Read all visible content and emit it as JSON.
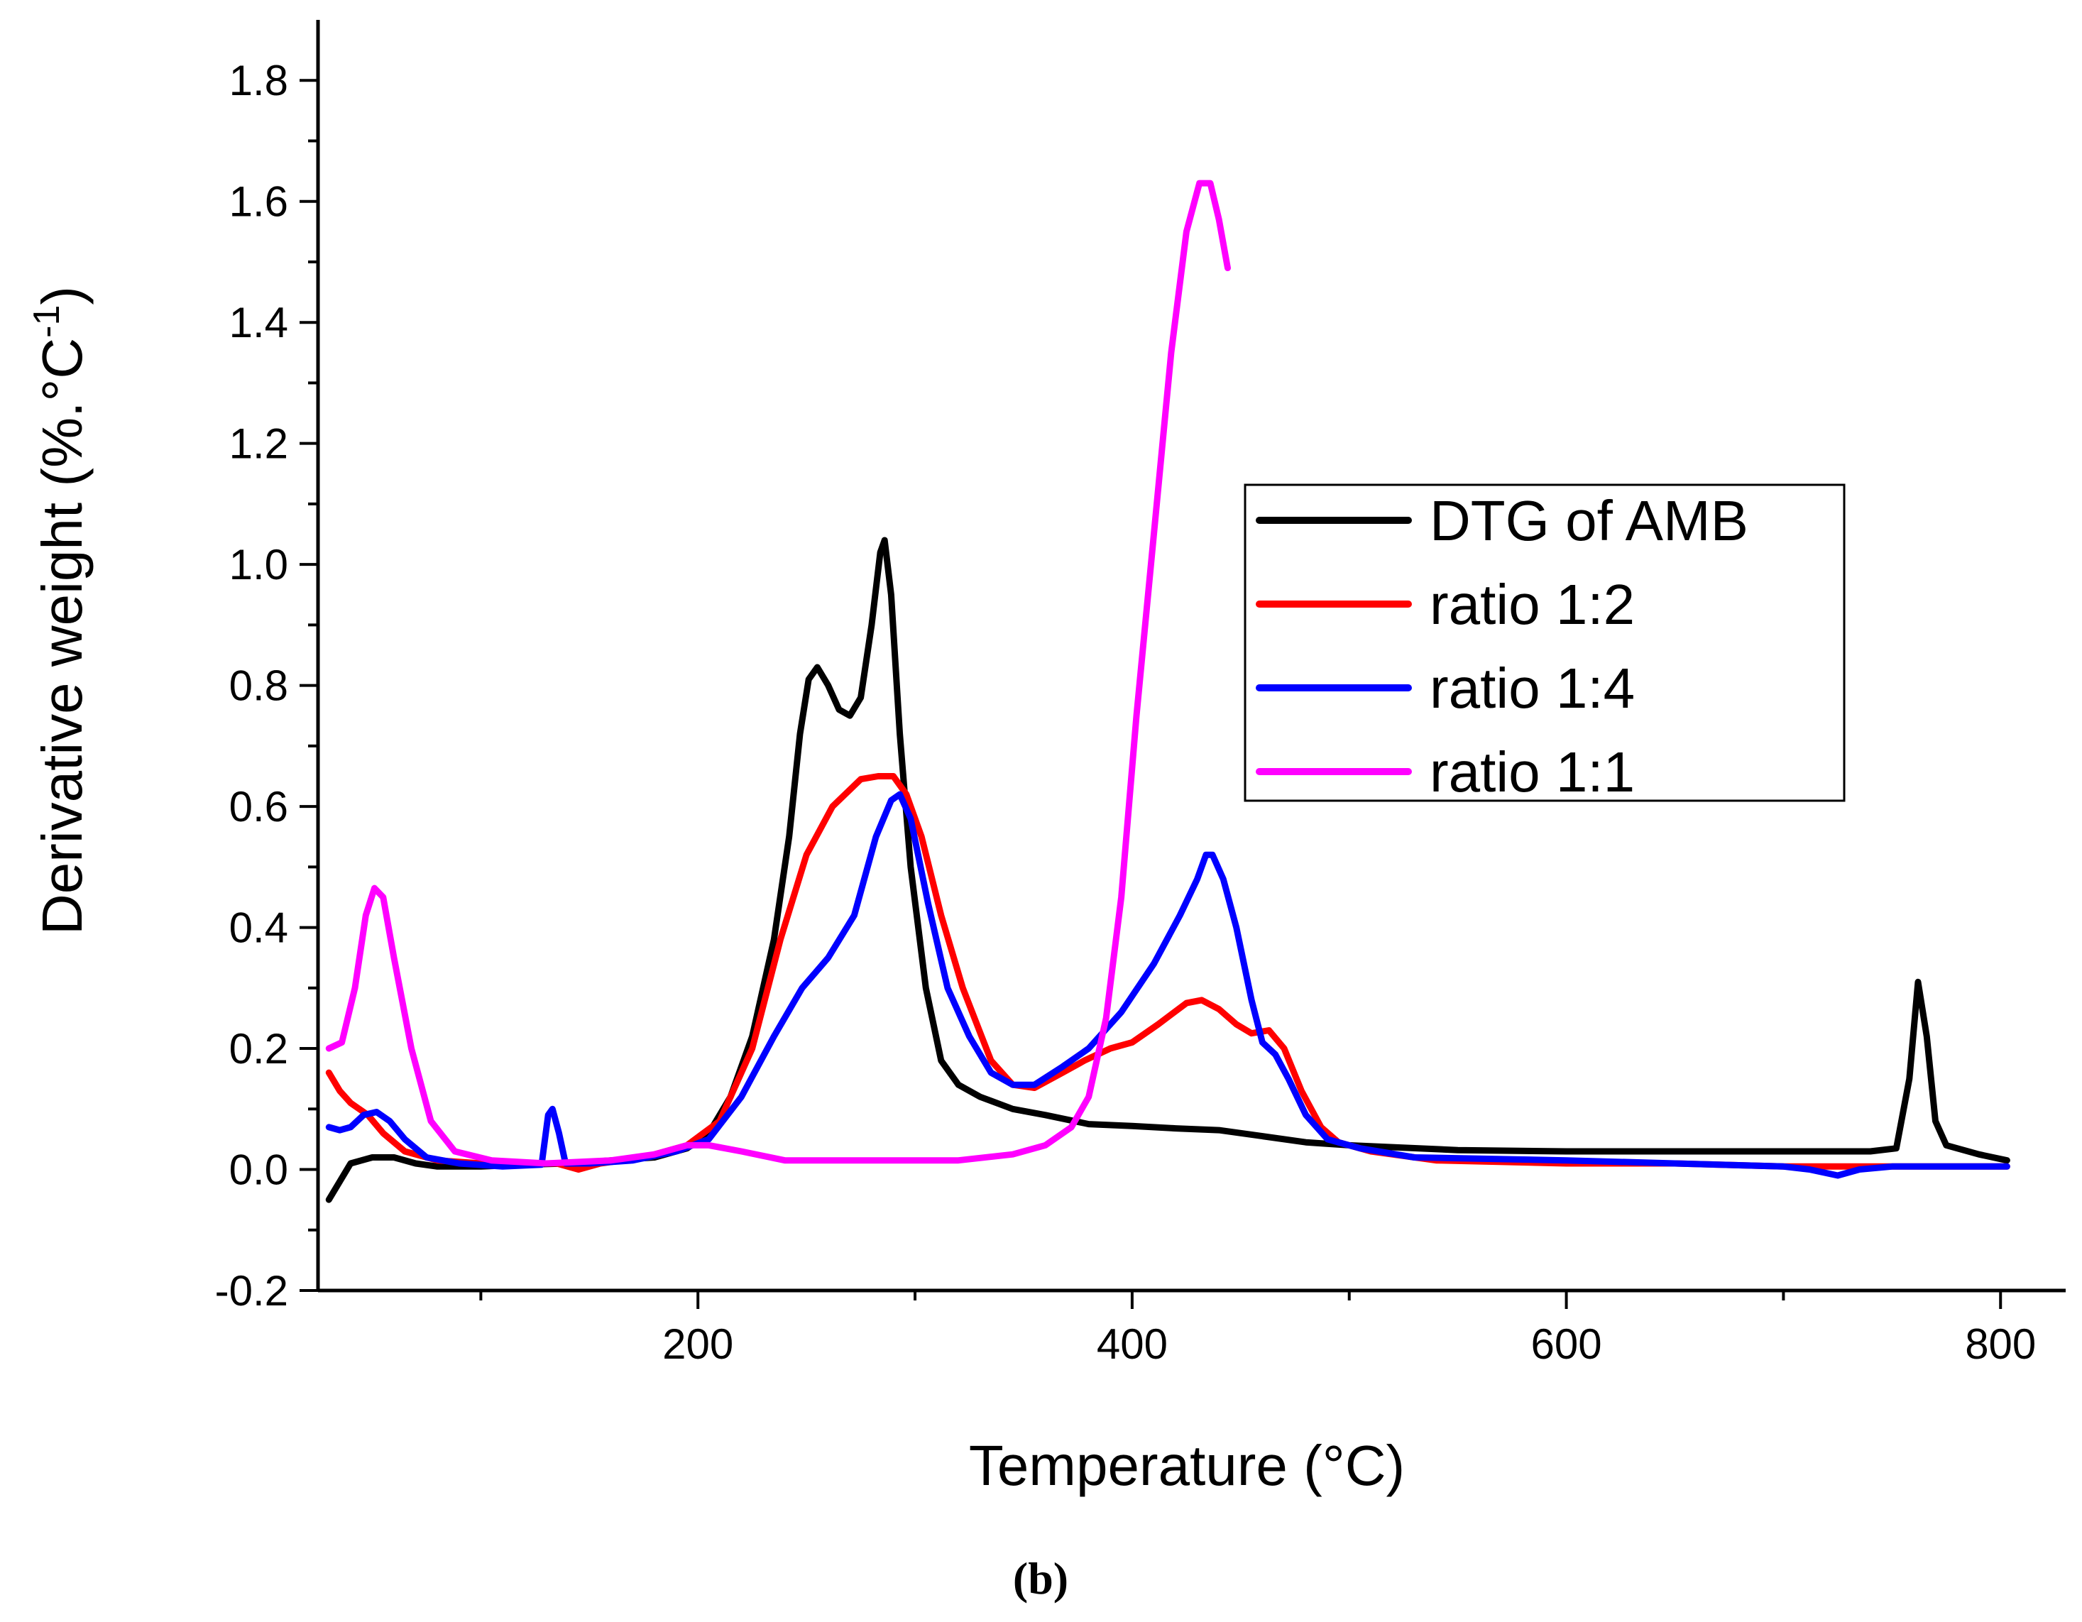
{
  "chart_data": {
    "type": "line",
    "title": "",
    "caption": "(b)",
    "xlabel": "Temperature (°C)",
    "ylabel_main": "Derivative weight (%.°C",
    "ylabel_sup": "-1",
    "ylabel_close": ")",
    "xlim": [
      25,
      830
    ],
    "ylim": [
      -0.2,
      1.9
    ],
    "x_ticks": [
      200,
      400,
      600,
      800
    ],
    "x_tick_labels": [
      "200",
      "400",
      "600",
      "800"
    ],
    "x_minor_ticks": [
      100,
      300,
      500,
      700
    ],
    "y_ticks": [
      -0.2,
      0.0,
      0.2,
      0.4,
      0.6,
      0.8,
      1.0,
      1.2,
      1.4,
      1.6,
      1.8
    ],
    "y_tick_labels": [
      "-0.2",
      "0.0",
      "0.2",
      "0.4",
      "0.6",
      "0.8",
      "1.0",
      "1.2",
      "1.4",
      "1.6",
      "1.8"
    ],
    "y_minor_ticks": [
      -0.1,
      0.1,
      0.3,
      0.5,
      0.7,
      0.9,
      1.1,
      1.3,
      1.5,
      1.7
    ],
    "grid": false,
    "legend_position": "center-right",
    "series": [
      {
        "name": "DTG of AMB",
        "color": "#000000",
        "points": [
          [
            30,
            -0.05
          ],
          [
            35,
            -0.02
          ],
          [
            40,
            0.01
          ],
          [
            50,
            0.02
          ],
          [
            60,
            0.02
          ],
          [
            70,
            0.01
          ],
          [
            80,
            0.005
          ],
          [
            100,
            0.005
          ],
          [
            120,
            0.008
          ],
          [
            140,
            0.01
          ],
          [
            160,
            0.015
          ],
          [
            180,
            0.02
          ],
          [
            195,
            0.035
          ],
          [
            205,
            0.06
          ],
          [
            215,
            0.12
          ],
          [
            225,
            0.22
          ],
          [
            235,
            0.38
          ],
          [
            242,
            0.55
          ],
          [
            247,
            0.72
          ],
          [
            251,
            0.81
          ],
          [
            255,
            0.83
          ],
          [
            260,
            0.8
          ],
          [
            265,
            0.76
          ],
          [
            270,
            0.75
          ],
          [
            275,
            0.78
          ],
          [
            280,
            0.9
          ],
          [
            284,
            1.02
          ],
          [
            286,
            1.04
          ],
          [
            289,
            0.95
          ],
          [
            293,
            0.72
          ],
          [
            298,
            0.5
          ],
          [
            305,
            0.3
          ],
          [
            312,
            0.18
          ],
          [
            320,
            0.14
          ],
          [
            330,
            0.12
          ],
          [
            345,
            0.1
          ],
          [
            360,
            0.09
          ],
          [
            380,
            0.075
          ],
          [
            400,
            0.072
          ],
          [
            420,
            0.068
          ],
          [
            440,
            0.065
          ],
          [
            460,
            0.055
          ],
          [
            480,
            0.045
          ],
          [
            500,
            0.04
          ],
          [
            550,
            0.032
          ],
          [
            600,
            0.03
          ],
          [
            650,
            0.03
          ],
          [
            700,
            0.03
          ],
          [
            740,
            0.03
          ],
          [
            752,
            0.035
          ],
          [
            758,
            0.15
          ],
          [
            762,
            0.31
          ],
          [
            766,
            0.22
          ],
          [
            770,
            0.08
          ],
          [
            775,
            0.04
          ],
          [
            790,
            0.025
          ],
          [
            803,
            0.015
          ]
        ]
      },
      {
        "name": "ratio 1:2",
        "color": "#ff0000",
        "points": [
          [
            30,
            0.16
          ],
          [
            35,
            0.13
          ],
          [
            40,
            0.11
          ],
          [
            48,
            0.09
          ],
          [
            55,
            0.06
          ],
          [
            65,
            0.03
          ],
          [
            80,
            0.015
          ],
          [
            100,
            0.01
          ],
          [
            120,
            0.01
          ],
          [
            135,
            0.01
          ],
          [
            145,
            0.0
          ],
          [
            155,
            0.01
          ],
          [
            175,
            0.02
          ],
          [
            195,
            0.04
          ],
          [
            210,
            0.08
          ],
          [
            225,
            0.2
          ],
          [
            238,
            0.38
          ],
          [
            250,
            0.52
          ],
          [
            262,
            0.6
          ],
          [
            275,
            0.645
          ],
          [
            283,
            0.65
          ],
          [
            290,
            0.65
          ],
          [
            296,
            0.62
          ],
          [
            303,
            0.55
          ],
          [
            312,
            0.42
          ],
          [
            322,
            0.3
          ],
          [
            335,
            0.18
          ],
          [
            345,
            0.14
          ],
          [
            355,
            0.135
          ],
          [
            368,
            0.16
          ],
          [
            378,
            0.18
          ],
          [
            390,
            0.2
          ],
          [
            400,
            0.21
          ],
          [
            412,
            0.24
          ],
          [
            425,
            0.275
          ],
          [
            432,
            0.28
          ],
          [
            440,
            0.265
          ],
          [
            448,
            0.24
          ],
          [
            455,
            0.225
          ],
          [
            463,
            0.23
          ],
          [
            470,
            0.2
          ],
          [
            478,
            0.13
          ],
          [
            487,
            0.07
          ],
          [
            495,
            0.045
          ],
          [
            510,
            0.03
          ],
          [
            540,
            0.015
          ],
          [
            600,
            0.01
          ],
          [
            650,
            0.01
          ],
          [
            700,
            0.005
          ],
          [
            750,
            0.005
          ],
          [
            803,
            0.005
          ]
        ]
      },
      {
        "name": "ratio 1:4",
        "color": "#0000ff",
        "points": [
          [
            30,
            0.07
          ],
          [
            35,
            0.065
          ],
          [
            40,
            0.07
          ],
          [
            46,
            0.09
          ],
          [
            52,
            0.095
          ],
          [
            58,
            0.08
          ],
          [
            65,
            0.05
          ],
          [
            75,
            0.02
          ],
          [
            90,
            0.01
          ],
          [
            110,
            0.005
          ],
          [
            128,
            0.008
          ],
          [
            131,
            0.09
          ],
          [
            133,
            0.1
          ],
          [
            136,
            0.06
          ],
          [
            139,
            0.01
          ],
          [
            150,
            0.01
          ],
          [
            170,
            0.015
          ],
          [
            190,
            0.03
          ],
          [
            205,
            0.05
          ],
          [
            220,
            0.12
          ],
          [
            235,
            0.22
          ],
          [
            248,
            0.3
          ],
          [
            260,
            0.35
          ],
          [
            272,
            0.42
          ],
          [
            282,
            0.55
          ],
          [
            289,
            0.61
          ],
          [
            293,
            0.62
          ],
          [
            298,
            0.58
          ],
          [
            306,
            0.44
          ],
          [
            315,
            0.3
          ],
          [
            325,
            0.22
          ],
          [
            335,
            0.16
          ],
          [
            345,
            0.14
          ],
          [
            355,
            0.14
          ],
          [
            368,
            0.17
          ],
          [
            380,
            0.2
          ],
          [
            395,
            0.26
          ],
          [
            410,
            0.34
          ],
          [
            422,
            0.42
          ],
          [
            430,
            0.48
          ],
          [
            434,
            0.52
          ],
          [
            437,
            0.52
          ],
          [
            442,
            0.48
          ],
          [
            448,
            0.4
          ],
          [
            455,
            0.28
          ],
          [
            460,
            0.21
          ],
          [
            466,
            0.19
          ],
          [
            472,
            0.15
          ],
          [
            480,
            0.09
          ],
          [
            490,
            0.05
          ],
          [
            505,
            0.035
          ],
          [
            530,
            0.02
          ],
          [
            600,
            0.015
          ],
          [
            650,
            0.01
          ],
          [
            700,
            0.005
          ],
          [
            712,
            0.0
          ],
          [
            725,
            -0.01
          ],
          [
            735,
            0.0
          ],
          [
            750,
            0.005
          ],
          [
            803,
            0.005
          ]
        ]
      },
      {
        "name": "ratio 1:1",
        "color": "#ff00ff",
        "points": [
          [
            30,
            0.2
          ],
          [
            36,
            0.21
          ],
          [
            42,
            0.3
          ],
          [
            47,
            0.42
          ],
          [
            51,
            0.465
          ],
          [
            55,
            0.45
          ],
          [
            60,
            0.35
          ],
          [
            68,
            0.2
          ],
          [
            77,
            0.08
          ],
          [
            88,
            0.03
          ],
          [
            105,
            0.015
          ],
          [
            130,
            0.01
          ],
          [
            160,
            0.015
          ],
          [
            180,
            0.025
          ],
          [
            195,
            0.04
          ],
          [
            205,
            0.04
          ],
          [
            220,
            0.03
          ],
          [
            240,
            0.015
          ],
          [
            260,
            0.015
          ],
          [
            290,
            0.015
          ],
          [
            320,
            0.015
          ],
          [
            345,
            0.025
          ],
          [
            360,
            0.04
          ],
          [
            372,
            0.07
          ],
          [
            380,
            0.12
          ],
          [
            388,
            0.25
          ],
          [
            395,
            0.45
          ],
          [
            402,
            0.75
          ],
          [
            410,
            1.05
          ],
          [
            418,
            1.35
          ],
          [
            425,
            1.55
          ],
          [
            431,
            1.63
          ],
          [
            436,
            1.63
          ],
          [
            440,
            1.57
          ],
          [
            444,
            1.49
          ]
        ]
      }
    ]
  }
}
